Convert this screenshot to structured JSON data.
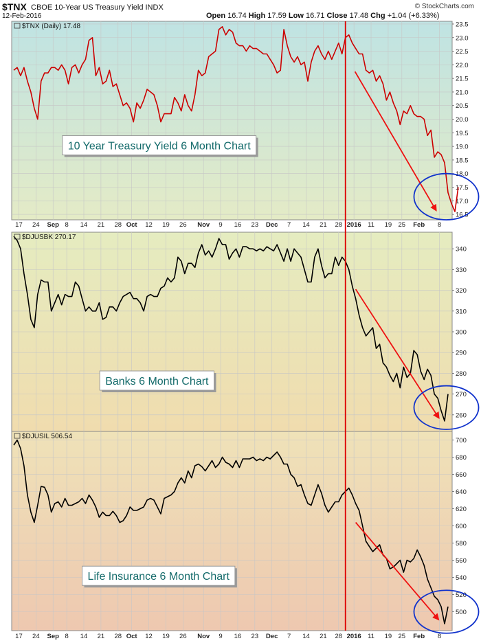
{
  "header": {
    "symbol": "$TNX",
    "name": "CBOE 10-Year US Treasury Yield INDX",
    "date": "12-Feb-2016",
    "open_label": "Open",
    "open": "16.74",
    "high_label": "High",
    "high": "17.59",
    "low_label": "Low",
    "low": "16.71",
    "close_label": "Close",
    "close": "17.48",
    "chg_label": "Chg",
    "chg": "+1.04 (+6.33%)",
    "credit": "© StockCharts.com"
  },
  "colors": {
    "tnx_line": "#cc0000",
    "price_line": "#000000",
    "arrow": "#ee1111",
    "ellipse": "#1133cc",
    "divider": "#dd0000",
    "title_text": "#136a6a"
  },
  "x_axis": {
    "labels": [
      {
        "t": "17",
        "i": 1.5
      },
      {
        "t": "24",
        "i": 6.5
      },
      {
        "t": "Sep",
        "i": 11.5
      },
      {
        "t": "8",
        "i": 15.5
      },
      {
        "t": "14",
        "i": 20.5
      },
      {
        "t": "21",
        "i": 25.5
      },
      {
        "t": "28",
        "i": 30.5
      },
      {
        "t": "Oct",
        "i": 34.5
      },
      {
        "t": "12",
        "i": 39.5
      },
      {
        "t": "19",
        "i": 44.5
      },
      {
        "t": "26",
        "i": 49.5
      },
      {
        "t": "Nov",
        "i": 55.5
      },
      {
        "t": "9",
        "i": 60.5
      },
      {
        "t": "16",
        "i": 65.5
      },
      {
        "t": "23",
        "i": 70.5
      },
      {
        "t": "Dec",
        "i": 75.5
      },
      {
        "t": "7",
        "i": 80.5
      },
      {
        "t": "14",
        "i": 85.5
      },
      {
        "t": "21",
        "i": 90.5
      },
      {
        "t": "28",
        "i": 95
      },
      {
        "t": "2016",
        "i": 99.5
      },
      {
        "t": "11",
        "i": 104.5
      },
      {
        "t": "19",
        "i": 109.5
      },
      {
        "t": "25",
        "i": 113.5
      },
      {
        "t": "Feb",
        "i": 118.5
      },
      {
        "t": "8",
        "i": 124.5
      }
    ],
    "bold": [
      "Sep",
      "Oct",
      "Nov",
      "Dec",
      "2016",
      "Feb"
    ],
    "divider_index": 97
  },
  "chart_data": [
    {
      "type": "line",
      "panel_label": "$TNX (Daily) 17.48",
      "title": "10 Year Treasury Yield 6 Month Chart",
      "ylim": [
        16.3,
        23.6
      ],
      "yticks": [
        16.5,
        17.0,
        17.5,
        18.0,
        18.5,
        19.0,
        19.5,
        20.0,
        20.5,
        21.0,
        21.5,
        22.0,
        22.5,
        23.0,
        23.5
      ],
      "y_decimals": 1,
      "values": [
        21.8,
        21.9,
        21.6,
        21.9,
        21.4,
        21.0,
        20.4,
        20.0,
        21.4,
        21.7,
        21.7,
        21.9,
        21.9,
        21.8,
        22.0,
        21.8,
        21.3,
        21.9,
        22.0,
        21.7,
        22.0,
        22.2,
        22.9,
        23.0,
        21.6,
        21.9,
        21.3,
        21.4,
        21.8,
        21.2,
        21.3,
        20.9,
        20.5,
        20.6,
        20.4,
        19.9,
        20.6,
        20.4,
        20.7,
        21.1,
        21.0,
        20.9,
        20.5,
        19.9,
        20.2,
        20.2,
        20.2,
        20.8,
        20.6,
        20.3,
        20.9,
        20.5,
        20.3,
        20.9,
        21.8,
        21.6,
        21.7,
        22.3,
        22.4,
        22.5,
        23.3,
        23.4,
        23.1,
        23.3,
        23.2,
        22.8,
        22.7,
        22.7,
        22.5,
        22.7,
        22.6,
        22.6,
        22.5,
        22.4,
        22.4,
        22.2,
        22.0,
        21.7,
        21.8,
        23.3,
        22.7,
        22.3,
        22.1,
        22.3,
        22.0,
        22.1,
        21.4,
        22.1,
        22.5,
        22.7,
        22.4,
        22.2,
        22.5,
        22.2,
        22.5,
        22.8,
        22.4,
        23.0,
        23.1,
        22.8,
        22.6,
        22.4,
        22.4,
        21.8,
        21.7,
        21.8,
        21.4,
        21.6,
        21.3,
        20.7,
        21.0,
        20.6,
        20.3,
        19.8,
        20.3,
        20.2,
        20.5,
        20.2,
        20.1,
        20.1,
        20.0,
        19.4,
        19.6,
        18.6,
        18.8,
        18.7,
        18.4,
        17.3,
        16.9,
        16.6,
        17.5
      ],
      "annotation": {
        "arrow": {
          "from": [
            99.8,
            21.75
          ],
          "to": [
            123.5,
            16.65
          ]
        },
        "ellipse": {
          "cx": 126.5,
          "cy": 17.15,
          "rx": 2.1,
          "ry": 0.85
        },
        "title_box": {
          "fx": 0.115,
          "fy": 0.68
        }
      }
    },
    {
      "type": "line",
      "panel_label": "$DJUSBK 270.17",
      "title": "Banks 6 Month Chart",
      "ylim": [
        252,
        348
      ],
      "yticks": [
        260,
        270,
        280,
        290,
        300,
        310,
        320,
        330,
        340
      ],
      "y_decimals": 0,
      "values": [
        346,
        344,
        340,
        328,
        318,
        306,
        302,
        318,
        325,
        324,
        324,
        310,
        314,
        318,
        313,
        318,
        317,
        317,
        324,
        322,
        316,
        310,
        312,
        310,
        310,
        314,
        306,
        307,
        312,
        312,
        310,
        314,
        317,
        318,
        319,
        316,
        316,
        314,
        310,
        317,
        318,
        317,
        317,
        321,
        322,
        326,
        324,
        326,
        336,
        334,
        328,
        333,
        333,
        331,
        338,
        342,
        337,
        339,
        336,
        340,
        345,
        342,
        342,
        335,
        338,
        340,
        336,
        341,
        341,
        340,
        340,
        339,
        340,
        339,
        341,
        340,
        339,
        342,
        338,
        334,
        340,
        334,
        340,
        338,
        336,
        330,
        324,
        324,
        336,
        340,
        332,
        326,
        328,
        328,
        336,
        332,
        336,
        334,
        330,
        322,
        316,
        308,
        302,
        298,
        300,
        302,
        292,
        294,
        285,
        283,
        279,
        276,
        280,
        273,
        283,
        278,
        280,
        291,
        289,
        281,
        277,
        282,
        279,
        270,
        268,
        262,
        257,
        270
      ],
      "annotation": {
        "arrow": {
          "from": [
            100,
            320.5
          ],
          "to": [
            124.3,
            258.5
          ]
        },
        "ellipse": {
          "cx": 126.5,
          "cy": 263.5,
          "rx": 2.1,
          "ry": 10.5
        },
        "title_box": {
          "fx": 0.2,
          "fy": 0.8
        }
      }
    },
    {
      "type": "line",
      "panel_label": "$DJUSIL 506.54",
      "title": "Life Insurance 6 Month Chart",
      "ylim": [
        478,
        710
      ],
      "yticks": [
        500,
        520,
        540,
        560,
        580,
        600,
        620,
        640,
        660,
        680,
        700
      ],
      "y_decimals": 0,
      "values": [
        694,
        700,
        690,
        670,
        636,
        616,
        604,
        624,
        646,
        645,
        636,
        616,
        626,
        628,
        622,
        632,
        624,
        624,
        626,
        628,
        632,
        626,
        636,
        630,
        622,
        610,
        616,
        612,
        612,
        617,
        612,
        604,
        606,
        612,
        622,
        618,
        618,
        620,
        622,
        630,
        632,
        630,
        622,
        614,
        632,
        634,
        636,
        640,
        650,
        656,
        650,
        664,
        656,
        670,
        672,
        669,
        664,
        670,
        676,
        668,
        672,
        680,
        674,
        672,
        668,
        676,
        668,
        678,
        678,
        678,
        680,
        676,
        678,
        676,
        680,
        678,
        682,
        686,
        680,
        672,
        672,
        660,
        656,
        646,
        648,
        636,
        626,
        624,
        636,
        648,
        638,
        624,
        616,
        622,
        628,
        628,
        636,
        640,
        644,
        636,
        626,
        618,
        600,
        582,
        576,
        570,
        574,
        578,
        566,
        562,
        550,
        552,
        556,
        560,
        546,
        560,
        558,
        562,
        572,
        564,
        554,
        538,
        528,
        518,
        514,
        506,
        486,
        506
      ],
      "annotation": {
        "arrow": {
          "from": [
            100,
            604
          ],
          "to": [
            124.2,
            491
          ]
        },
        "ellipse": {
          "cx": 126.5,
          "cy": 500,
          "rx": 2.1,
          "ry": 25
        },
        "title_box": {
          "fx": 0.16,
          "fy": 0.78
        }
      }
    }
  ]
}
